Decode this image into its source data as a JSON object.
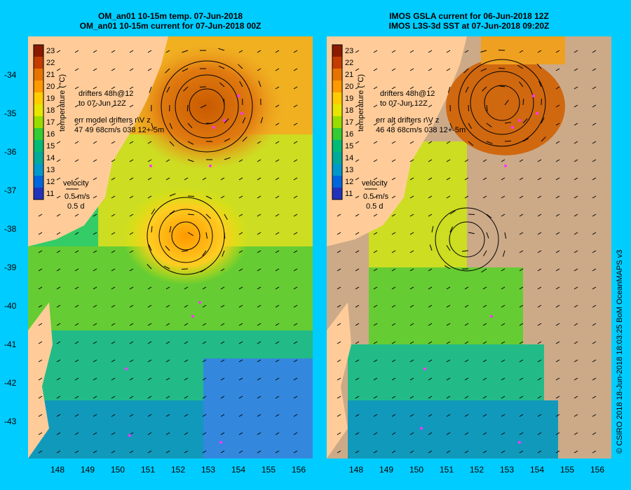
{
  "left_panel": {
    "title_line1": "OM_an01 10-15m temp. 07-Jun-2018",
    "title_line2": "OM_an01 10-15m current for 07-Jun-2018 00Z",
    "drifters_label1": "drifters 48h@12",
    "drifters_label2": "to 07-Jun 12Z",
    "err_label": "err model drifters r\\V z",
    "err_values": "47 49 68cm/s 038 12+-5m"
  },
  "right_panel": {
    "title_line1": "IMOS GSLA current for 06-Jun-2018 12Z",
    "title_line2": "IMOS L3S-3d SST at 07-Jun-2018 09:20Z",
    "drifters_label1": "drifters 48h@12",
    "drifters_label2": "to 07-Jun 12Z",
    "err_label": "err alt drifters r\\V z",
    "err_values": "46 48 68cm/s 038 12+-5m"
  },
  "colorbar": {
    "label": "temperature (°C)",
    "ticks": [
      "23",
      "22",
      "21",
      "20",
      "19",
      "18",
      "17",
      "16",
      "15",
      "14",
      "13",
      "12",
      "11"
    ],
    "colors": [
      "#8b1a00",
      "#c43c00",
      "#e67300",
      "#ff9900",
      "#ffcc00",
      "#e6e600",
      "#99dd00",
      "#33cc33",
      "#00bb77",
      "#00aa99",
      "#0099cc",
      "#0066dd",
      "#2233bb"
    ]
  },
  "velocity": {
    "title": "velocity",
    "speed": "0.5 m/s",
    "time": "0.5 d"
  },
  "axes": {
    "lat_ticks": [
      "-34",
      "-35",
      "-36",
      "-37",
      "-38",
      "-39",
      "-40",
      "-41",
      "-42",
      "-43"
    ],
    "lon_ticks": [
      "148",
      "149",
      "150",
      "151",
      "152",
      "153",
      "154",
      "155",
      "156"
    ]
  },
  "colors": {
    "background": "#00ccff",
    "land": "#ffcc99",
    "cloud": "#ccaa88",
    "drifter": "#ff33ff"
  },
  "credit": "© CSIRO 2018   18-Jun-2018 18:03:25 BoM OceanMAPS v3"
}
